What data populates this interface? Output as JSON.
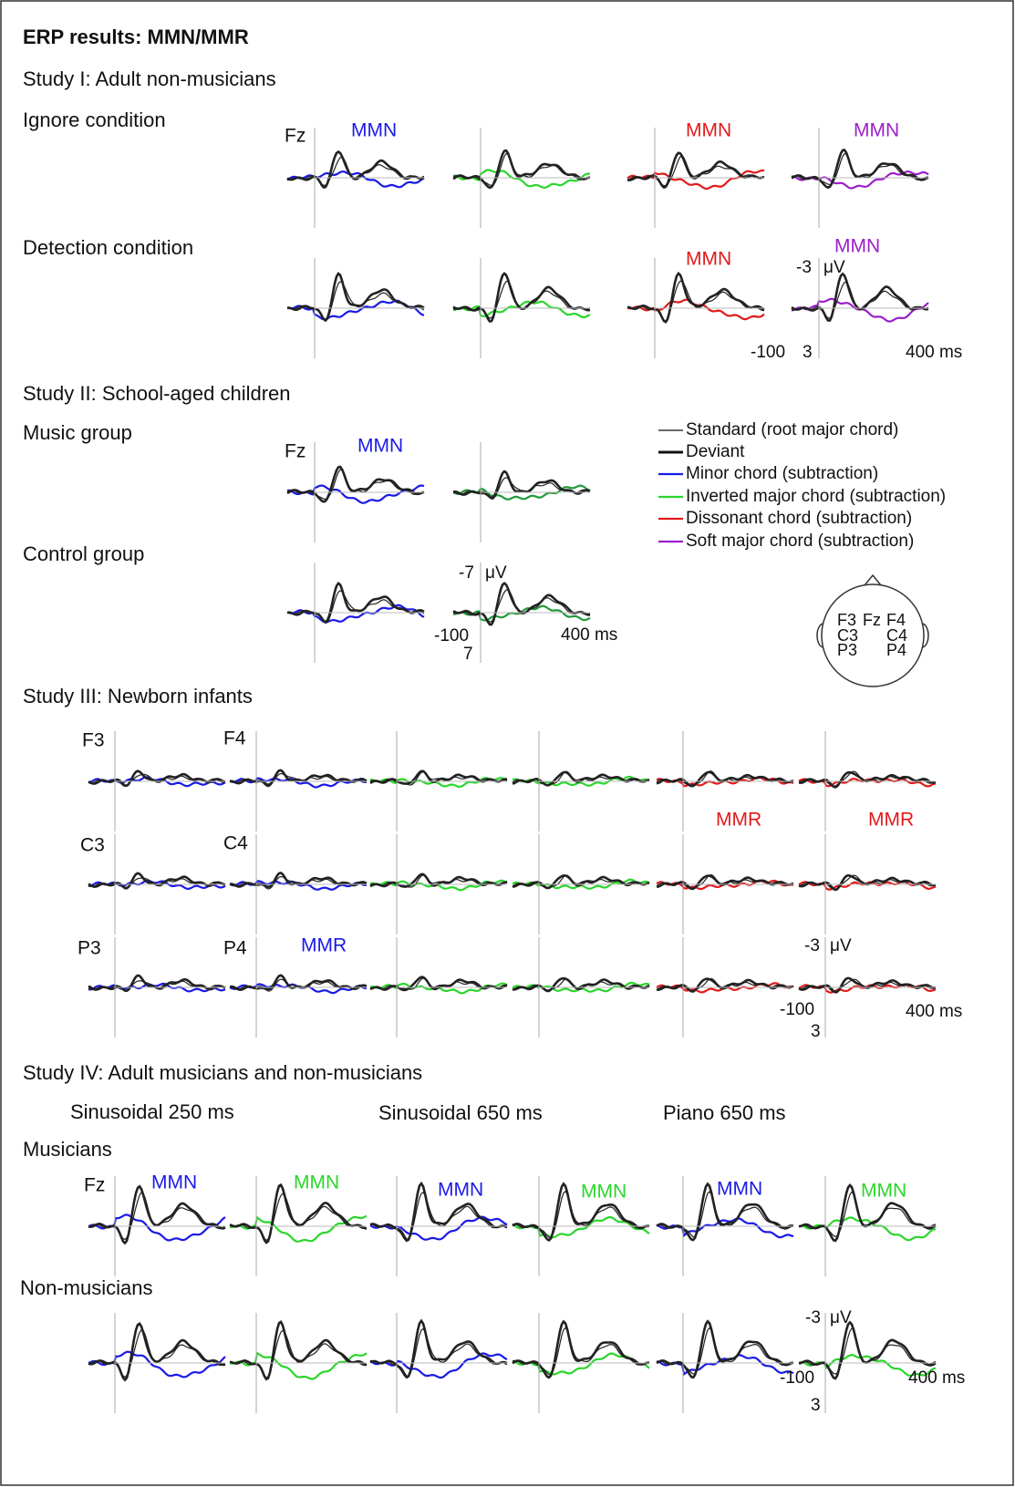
{
  "title": "ERP results: MMN/MMR",
  "study1": {
    "heading": "Study I: Adult non-musicians",
    "ignore": {
      "label": "Ignore condition",
      "electrode": "Fz",
      "mmn": [
        "MMN",
        "MMN",
        "MMN"
      ]
    },
    "detection": {
      "label": "Detection condition",
      "mmn": [
        "MMN",
        "MMN"
      ],
      "scale": {
        "amp_top": "-3",
        "unit": "μV",
        "time_start": "-100",
        "amp_bottom": "3",
        "time_end": "400 ms"
      }
    }
  },
  "study2": {
    "heading": "Study II: School-aged children",
    "music": {
      "label": "Music group",
      "electrode": "Fz",
      "mmn": "MMN"
    },
    "control": {
      "label": "Control group",
      "scale": {
        "amp_top": "-7",
        "unit": "μV",
        "time_start": "-100",
        "amp_bottom": "7",
        "time_end": "400 ms"
      }
    }
  },
  "legend": [
    "Standard (root major chord)",
    "Deviant",
    "Minor chord (subtraction)",
    "Inverted major chord (subtraction)",
    "Dissonant chord (subtraction)",
    "Soft major chord (subtraction)"
  ],
  "head": [
    "F3",
    "Fz",
    "F4",
    "C3",
    "C4",
    "P3",
    "P4"
  ],
  "study3": {
    "heading": "Study III: Newborn infants",
    "electrodes": [
      "F3",
      "F4",
      "C3",
      "C4",
      "P3",
      "P4"
    ],
    "mmr": [
      "MMR",
      "MMR",
      "MMR"
    ],
    "scale": {
      "amp_top": "-3",
      "unit": "μV",
      "time_start": "-100",
      "amp_bottom": "3",
      "time_end": "400 ms"
    }
  },
  "study4": {
    "heading": "Study IV: Adult musicians and non-musicians",
    "conditions": [
      "Sinusoidal 250 ms",
      "Sinusoidal 650 ms",
      "Piano 650 ms"
    ],
    "musicians": "Musicians",
    "electrode": "Fz",
    "mmn": [
      "MMN",
      "MMN",
      "MMN",
      "MMN",
      "MMN",
      "MMN"
    ],
    "nonmusicians": "Non-musicians",
    "scale": {
      "amp_top": "-3",
      "unit": "μV",
      "time_start": "-100",
      "amp_bottom": "3",
      "time_end": "400 ms"
    }
  }
}
